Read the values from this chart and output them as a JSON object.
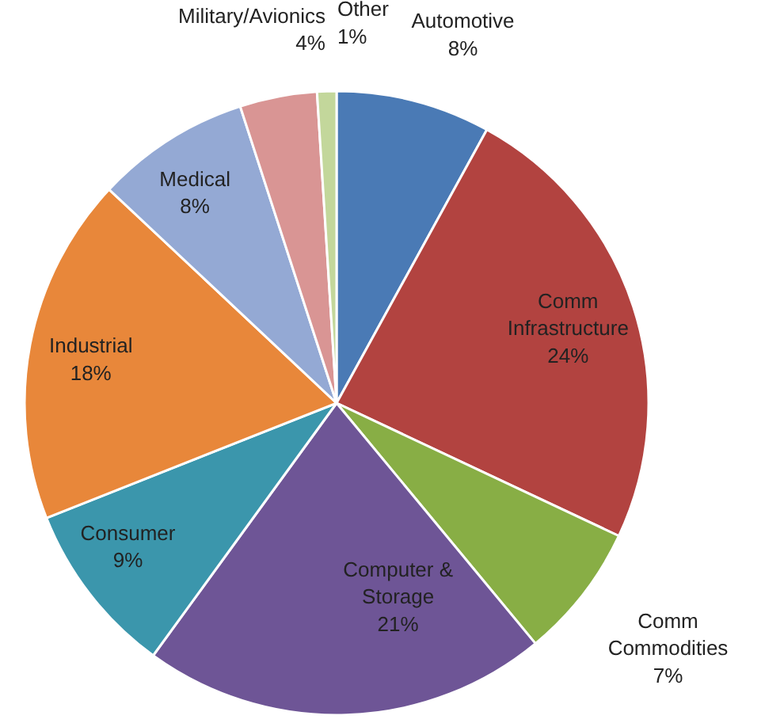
{
  "chart_data": {
    "type": "pie",
    "value_labels": [
      "8%",
      "24%",
      "7%",
      "21%",
      "9%",
      "18%",
      "8%",
      "4%",
      "1%"
    ],
    "categories": [
      "Automotive",
      "Comm Infrastructure",
      "Comm Commodities",
      "Computer & Storage",
      "Consumer",
      "Industrial",
      "Medical",
      "Military/Avionics",
      "Other"
    ],
    "values": [
      8,
      24,
      7,
      21,
      9,
      18,
      8,
      4,
      1
    ],
    "colors": [
      "#4a7ab5",
      "#b24340",
      "#88ae45",
      "#6e5596",
      "#3b96ac",
      "#e8873a",
      "#94a9d4",
      "#d99594",
      "#c3d79b"
    ]
  }
}
